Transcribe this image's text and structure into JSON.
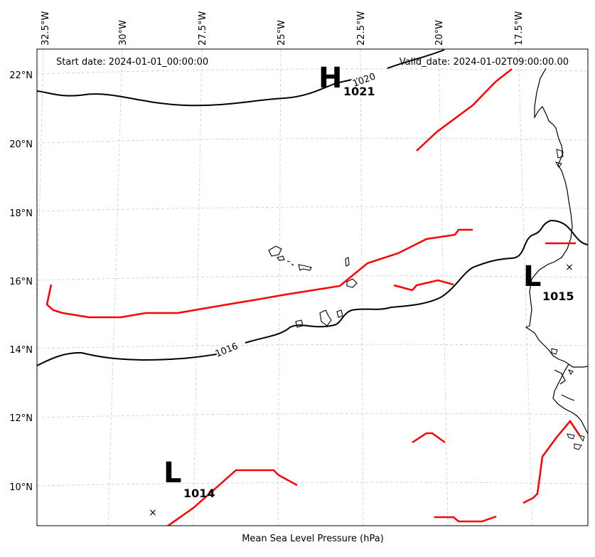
{
  "header": {
    "start_date": "Start date: 2024-01-01_00:00:00",
    "valid_date": "Valid_date: 2024-01-02T09:00:00.00"
  },
  "caption": "Mean Sea Level Pressure (hPa)",
  "longitude_ticks": [
    "32.5°W",
    "30°W",
    "27.5°W",
    "25°W",
    "22.5°W",
    "20°W",
    "17.5°W"
  ],
  "latitude_ticks": [
    "22°N",
    "20°N",
    "18°N",
    "16°N",
    "14°N",
    "12°N",
    "10°N"
  ],
  "isobars": [
    {
      "value": "1020"
    },
    {
      "value": "1016"
    }
  ],
  "pressure_systems": [
    {
      "type": "high",
      "letter": "H",
      "value": "1021"
    },
    {
      "type": "low",
      "letter": "L",
      "value": "1015"
    },
    {
      "type": "low",
      "letter": "L",
      "value": "1014"
    }
  ],
  "colors": {
    "isobar": "#000000",
    "front": "#ff0000",
    "grid": "#cccccc",
    "coast": "#000000"
  }
}
